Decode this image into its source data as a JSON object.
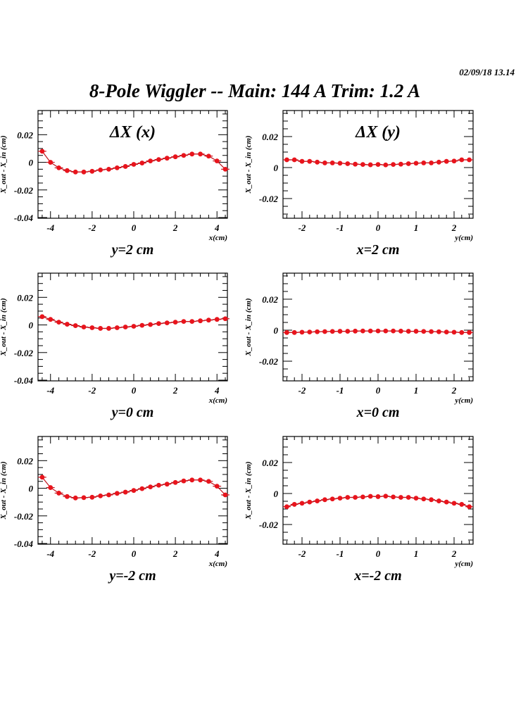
{
  "header": {
    "timestamp": "02/09/18   13.14",
    "title": "8-Pole Wiggler --  Main: 144 A    Trim: 1.2 A"
  },
  "colors": {
    "marker": "#e8141c",
    "line": "#c0101a",
    "frame": "#000000"
  },
  "chart_data": [
    {
      "type": "scatter",
      "panel": "top-left",
      "title": "ΔX (x)",
      "caption": "y=2 cm",
      "xlabel": "x(cm)",
      "ylabel": "X_out - X_in (cm)",
      "xlim": [
        -4.6,
        4.5
      ],
      "ylim": [
        -0.0405,
        0.0375
      ],
      "xticks": [
        -4,
        -2,
        0,
        2,
        4
      ],
      "yticks": [
        -0.04,
        -0.02,
        0,
        0.02
      ],
      "ytick_labels": [
        "-0.04",
        "-0.02",
        "0",
        "0.02"
      ],
      "xtick_labels": [
        "-4",
        "-2",
        "0",
        "2",
        "4"
      ],
      "x": [
        -4.4,
        -4.0,
        -3.6,
        -3.2,
        -2.8,
        -2.4,
        -2.0,
        -1.6,
        -1.2,
        -0.8,
        -0.4,
        0.0,
        0.4,
        0.8,
        1.2,
        1.6,
        2.0,
        2.4,
        2.8,
        3.2,
        3.6,
        4.0,
        4.4
      ],
      "y": [
        0.008,
        0.0,
        -0.004,
        -0.006,
        -0.007,
        -0.007,
        -0.0065,
        -0.0055,
        -0.005,
        -0.004,
        -0.003,
        -0.0015,
        -0.0005,
        0.001,
        0.002,
        0.003,
        0.004,
        0.005,
        0.006,
        0.006,
        0.0045,
        0.001,
        -0.005
      ]
    },
    {
      "type": "scatter",
      "panel": "top-right",
      "title": "ΔX (y)",
      "caption": "x=2 cm",
      "xlabel": "y(cm)",
      "ylabel": "X_out - X_in (cm)",
      "xlim": [
        -2.5,
        2.5
      ],
      "ylim": [
        -0.0327,
        0.0368
      ],
      "xticks": [
        -2,
        -1,
        0,
        1,
        2
      ],
      "yticks": [
        -0.02,
        0,
        0.02
      ],
      "ytick_labels": [
        "-0.02",
        "0",
        "0.02"
      ],
      "xtick_labels": [
        "-2",
        "-1",
        "0",
        "1",
        "2"
      ],
      "x": [
        -2.4,
        -2.2,
        -2.0,
        -1.8,
        -1.6,
        -1.4,
        -1.2,
        -1.0,
        -0.8,
        -0.6,
        -0.4,
        -0.2,
        0.0,
        0.2,
        0.4,
        0.6,
        0.8,
        1.0,
        1.2,
        1.4,
        1.6,
        1.8,
        2.0,
        2.2,
        2.4
      ],
      "y": [
        0.005,
        0.005,
        0.004,
        0.004,
        0.0035,
        0.003,
        0.003,
        0.0028,
        0.0025,
        0.0022,
        0.002,
        0.0018,
        0.002,
        0.0017,
        0.002,
        0.0022,
        0.0025,
        0.0028,
        0.003,
        0.003,
        0.0035,
        0.004,
        0.0042,
        0.005,
        0.005
      ]
    },
    {
      "type": "scatter",
      "panel": "middle-left",
      "title": "",
      "caption": "y=0 cm",
      "xlabel": "x(cm)",
      "ylabel": "X_out - X_in (cm)",
      "xlim": [
        -4.6,
        4.5
      ],
      "ylim": [
        -0.0405,
        0.0375
      ],
      "xticks": [
        -4,
        -2,
        0,
        2,
        4
      ],
      "yticks": [
        -0.04,
        -0.02,
        0,
        0.02
      ],
      "ytick_labels": [
        "-0.04",
        "-0.02",
        "0",
        "0.02"
      ],
      "xtick_labels": [
        "-4",
        "-2",
        "0",
        "2",
        "4"
      ],
      "x": [
        -4.4,
        -4.0,
        -3.6,
        -3.2,
        -2.8,
        -2.4,
        -2.0,
        -1.6,
        -1.2,
        -0.8,
        -0.4,
        0.0,
        0.4,
        0.8,
        1.2,
        1.6,
        2.0,
        2.4,
        2.8,
        3.2,
        3.6,
        4.0,
        4.4
      ],
      "y": [
        0.006,
        0.004,
        0.002,
        0.0005,
        -0.0005,
        -0.0015,
        -0.002,
        -0.0025,
        -0.0025,
        -0.002,
        -0.0015,
        -0.001,
        -0.0003,
        0.0003,
        0.001,
        0.0015,
        0.002,
        0.0025,
        0.0025,
        0.003,
        0.0035,
        0.004,
        0.0045
      ]
    },
    {
      "type": "scatter",
      "panel": "middle-right",
      "title": "",
      "caption": "x=0 cm",
      "xlabel": "y(cm)",
      "ylabel": "X_out - X_in (cm)",
      "xlim": [
        -2.5,
        2.5
      ],
      "ylim": [
        -0.0327,
        0.0368
      ],
      "xticks": [
        -2,
        -1,
        0,
        1,
        2
      ],
      "yticks": [
        -0.02,
        0,
        0.02
      ],
      "ytick_labels": [
        "-0.02",
        "0",
        "0.02"
      ],
      "xtick_labels": [
        "-2",
        "-1",
        "0",
        "1",
        "2"
      ],
      "x": [
        -2.4,
        -2.2,
        -2.0,
        -1.8,
        -1.6,
        -1.4,
        -1.2,
        -1.0,
        -0.8,
        -0.6,
        -0.4,
        -0.2,
        0.0,
        0.2,
        0.4,
        0.6,
        0.8,
        1.0,
        1.2,
        1.4,
        1.6,
        1.8,
        2.0,
        2.2,
        2.4
      ],
      "y": [
        -0.0015,
        -0.0015,
        -0.0013,
        -0.0012,
        -0.001,
        -0.0009,
        -0.0008,
        -0.0007,
        -0.0007,
        -0.0006,
        -0.0005,
        -0.0005,
        -0.0005,
        -0.0005,
        -0.0005,
        -0.0006,
        -0.0007,
        -0.0007,
        -0.0008,
        -0.0009,
        -0.001,
        -0.0012,
        -0.0013,
        -0.0015,
        -0.0015
      ]
    },
    {
      "type": "scatter",
      "panel": "bottom-left",
      "title": "",
      "caption": "y=-2 cm",
      "xlabel": "x(cm)",
      "ylabel": "X_out - X_in (cm)",
      "xlim": [
        -4.6,
        4.5
      ],
      "ylim": [
        -0.0405,
        0.0375
      ],
      "xticks": [
        -4,
        -2,
        0,
        2,
        4
      ],
      "yticks": [
        -0.04,
        -0.02,
        0,
        0.02
      ],
      "ytick_labels": [
        "-0.04",
        "-0.02",
        "0",
        "0.02"
      ],
      "xtick_labels": [
        "-4",
        "-2",
        "0",
        "2",
        "4"
      ],
      "x": [
        -4.4,
        -4.0,
        -3.6,
        -3.2,
        -2.8,
        -2.4,
        -2.0,
        -1.6,
        -1.2,
        -0.8,
        -0.4,
        0.0,
        0.4,
        0.8,
        1.2,
        1.6,
        2.0,
        2.4,
        2.8,
        3.2,
        3.6,
        4.0,
        4.4
      ],
      "y": [
        0.008,
        0.0005,
        -0.0035,
        -0.006,
        -0.007,
        -0.0068,
        -0.0065,
        -0.0055,
        -0.0048,
        -0.0037,
        -0.0028,
        -0.0016,
        -0.0003,
        0.001,
        0.0022,
        0.003,
        0.0042,
        0.0053,
        0.006,
        0.006,
        0.005,
        0.0015,
        -0.0048
      ]
    },
    {
      "type": "scatter",
      "panel": "bottom-right",
      "title": "",
      "caption": "x=-2 cm",
      "xlabel": "y(cm)",
      "ylabel": "X_out - X_in (cm)",
      "xlim": [
        -2.5,
        2.5
      ],
      "ylim": [
        -0.0327,
        0.0368
      ],
      "xticks": [
        -2,
        -1,
        0,
        1,
        2
      ],
      "yticks": [
        -0.02,
        0,
        0.02
      ],
      "ytick_labels": [
        "-0.02",
        "0",
        "0.02"
      ],
      "xtick_labels": [
        "-2",
        "-1",
        "0",
        "1",
        "2"
      ],
      "x": [
        -2.4,
        -2.2,
        -2.0,
        -1.8,
        -1.6,
        -1.4,
        -1.2,
        -1.0,
        -0.8,
        -0.6,
        -0.4,
        -0.2,
        0.0,
        0.2,
        0.4,
        0.6,
        0.8,
        1.0,
        1.2,
        1.4,
        1.6,
        1.8,
        2.0,
        2.2,
        2.4
      ],
      "y": [
        -0.0085,
        -0.007,
        -0.0063,
        -0.0055,
        -0.0048,
        -0.004,
        -0.0035,
        -0.003,
        -0.0025,
        -0.0025,
        -0.0022,
        -0.0018,
        -0.002,
        -0.0017,
        -0.0022,
        -0.0025,
        -0.0025,
        -0.003,
        -0.0035,
        -0.004,
        -0.0048,
        -0.0055,
        -0.0063,
        -0.007,
        -0.0085
      ]
    }
  ]
}
